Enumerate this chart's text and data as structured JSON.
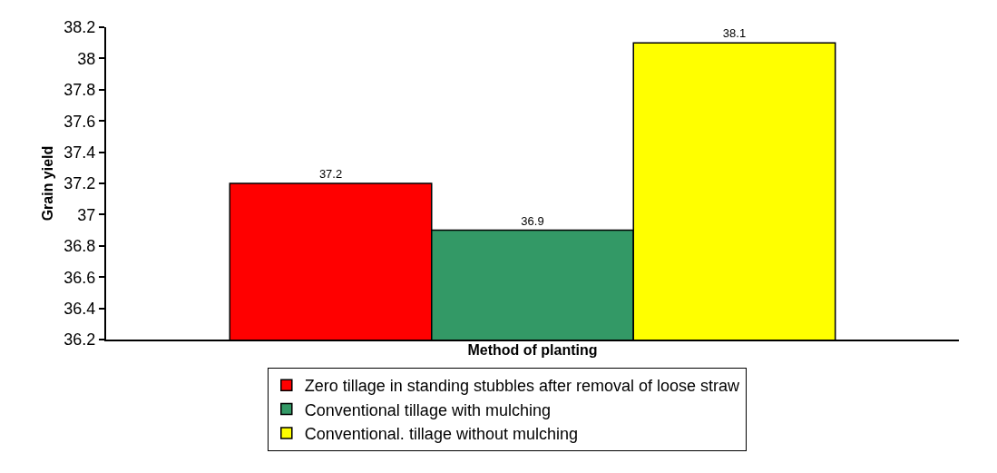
{
  "chart_data": {
    "type": "bar",
    "xlabel": "Method of planting",
    "ylabel": "Grain yield",
    "categories": [
      null
    ],
    "series": [
      {
        "name": "Zero tillage in standing stubbles after removal of loose straw",
        "color": "#ff0000",
        "values": [
          37.2
        ]
      },
      {
        "name": "Conventional tillage with mulching",
        "color": "#339966",
        "values": [
          36.9
        ]
      },
      {
        "name": "Conventional. tillage without mulching",
        "color": "#ffff00",
        "values": [
          38.1
        ]
      }
    ],
    "ylim": [
      36.2,
      38.2
    ],
    "yticks": [
      36.2,
      36.4,
      36.6,
      36.8,
      37,
      37.2,
      37.4,
      37.6,
      37.8,
      38,
      38.2
    ],
    "data_labels": true,
    "legend": "bottom"
  }
}
